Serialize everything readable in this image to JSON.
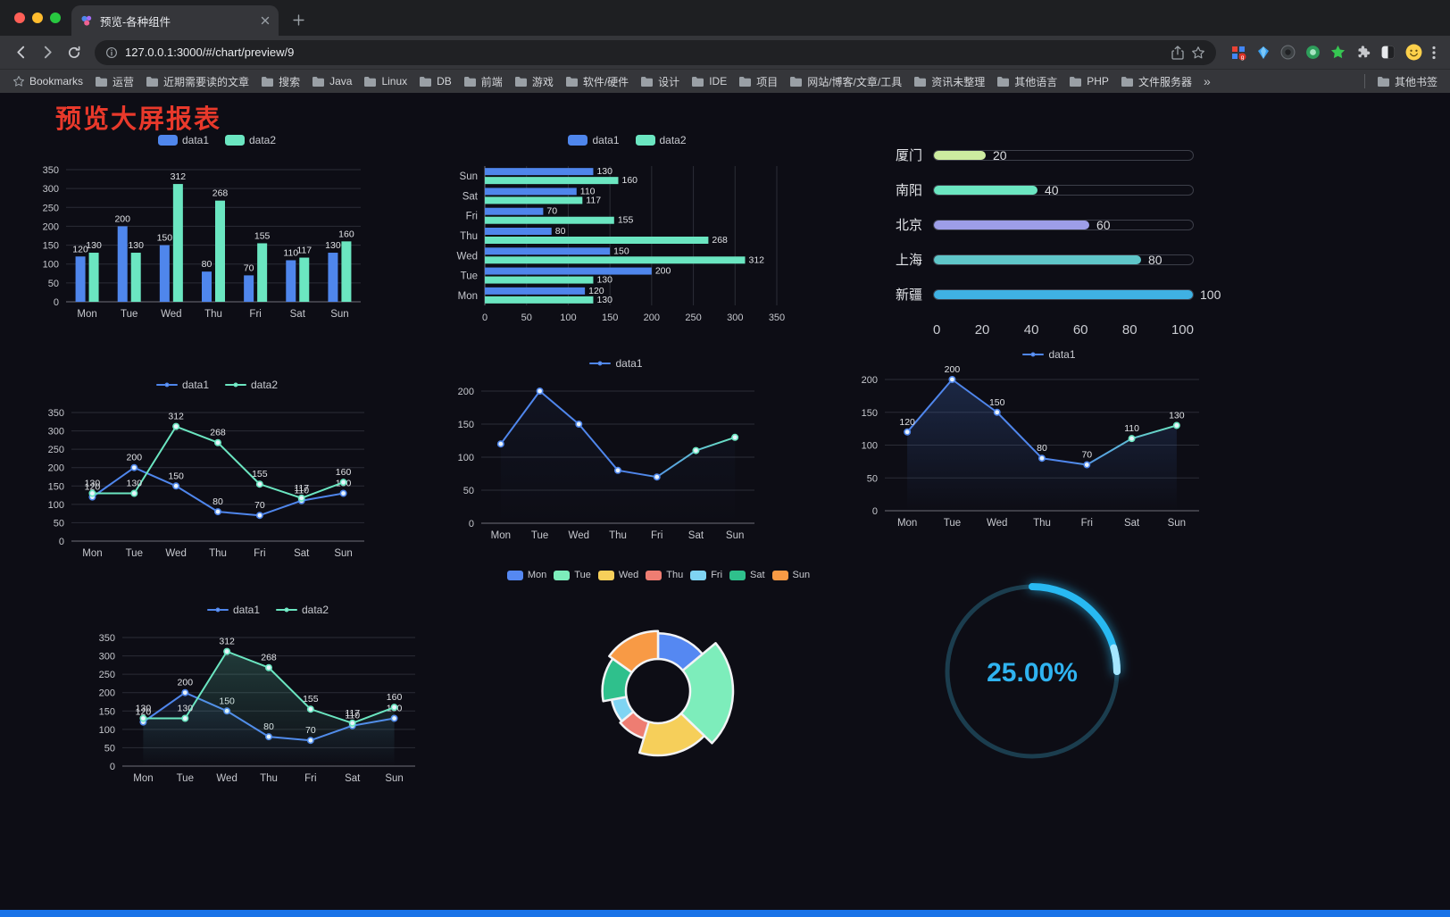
{
  "browser": {
    "traffic_lights": [
      "#ff5f57",
      "#febc2e",
      "#28c840"
    ],
    "tab": {
      "title": "预览-各种组件"
    },
    "url": "127.0.0.1:3000/#/chart/preview/9",
    "bookmarks_label": "Bookmarks",
    "bookmarks": [
      "运营",
      "近期需要读的文章",
      "搜索",
      "Java",
      "Linux",
      "DB",
      "前端",
      "游戏",
      "软件/硬件",
      "设计",
      "IDE",
      "项目",
      "网站/博客/文章/工具",
      "资讯未整理",
      "其他语言",
      "PHP",
      "文件服务器"
    ],
    "bookmarks_overflow": "»",
    "other_bookmarks": "其他书签"
  },
  "page": {
    "title": "预览大屏报表"
  },
  "chart_data": [
    {
      "id": "grouped-bar",
      "type": "bar",
      "categories": [
        "Mon",
        "Tue",
        "Wed",
        "Thu",
        "Fri",
        "Sat",
        "Sun"
      ],
      "series": [
        {
          "name": "data1",
          "color": "#4f86ec",
          "values": [
            120,
            200,
            150,
            80,
            70,
            110,
            130
          ]
        },
        {
          "name": "data2",
          "color": "#6be6c1",
          "values": [
            130,
            130,
            312,
            268,
            155,
            117,
            160
          ]
        }
      ],
      "ylim": [
        0,
        350
      ],
      "ystep": 50
    },
    {
      "id": "horizontal-grouped-bar",
      "type": "bar",
      "orientation": "horizontal",
      "categories": [
        "Mon",
        "Tue",
        "Wed",
        "Thu",
        "Fri",
        "Sat",
        "Sun"
      ],
      "series": [
        {
          "name": "data1",
          "color": "#4f86ec",
          "values": [
            120,
            200,
            150,
            80,
            70,
            110,
            130
          ]
        },
        {
          "name": "data2",
          "color": "#6be6c1",
          "values": [
            130,
            130,
            312,
            268,
            155,
            117,
            160
          ]
        }
      ],
      "xlim": [
        0,
        350
      ],
      "xstep": 50
    },
    {
      "id": "city-progress",
      "type": "bar",
      "orientation": "horizontal",
      "rows": [
        {
          "label": "厦门",
          "value": 20,
          "color": "#cdeca0"
        },
        {
          "label": "南阳",
          "value": 40,
          "color": "#6be6c1"
        },
        {
          "label": "北京",
          "value": 60,
          "color": "#9d9ee8"
        },
        {
          "label": "上海",
          "value": 80,
          "color": "#5fc6c9"
        },
        {
          "label": "新疆",
          "value": 100,
          "color": "#3fb1e3"
        }
      ],
      "xlim": [
        0,
        100
      ],
      "xticks": [
        0,
        20,
        40,
        60,
        80,
        100
      ]
    },
    {
      "id": "line-two-series",
      "type": "line",
      "categories": [
        "Mon",
        "Tue",
        "Wed",
        "Thu",
        "Fri",
        "Sat",
        "Sun"
      ],
      "series": [
        {
          "name": "data1",
          "color": "#4f86ec",
          "values": [
            120,
            200,
            150,
            80,
            70,
            110,
            130
          ],
          "labels": true
        },
        {
          "name": "data2",
          "color": "#6be6c1",
          "values": [
            130,
            130,
            312,
            268,
            155,
            117,
            160
          ],
          "labels": true
        }
      ],
      "ylim": [
        0,
        350
      ],
      "ystep": 50
    },
    {
      "id": "line-single",
      "type": "line",
      "categories": [
        "Mon",
        "Tue",
        "Wed",
        "Thu",
        "Fri",
        "Sat",
        "Sun"
      ],
      "series": [
        {
          "name": "data1",
          "color": "#4f86ec",
          "gradient": [
            "#4f86ec",
            "#6be6c1"
          ],
          "values": [
            120,
            200,
            150,
            80,
            70,
            110,
            130
          ],
          "labels": false,
          "area": 0.1
        }
      ],
      "ylim": [
        0,
        200
      ],
      "ystep": 50
    },
    {
      "id": "line-single-area",
      "type": "line",
      "categories": [
        "Mon",
        "Tue",
        "Wed",
        "Thu",
        "Fri",
        "Sat",
        "Sun"
      ],
      "series": [
        {
          "name": "data1",
          "color": "#4f86ec",
          "gradient": [
            "#4f86ec",
            "#6be6c1"
          ],
          "values": [
            120,
            200,
            150,
            80,
            70,
            110,
            130
          ],
          "labels": true,
          "area": 0.4
        }
      ],
      "ylim": [
        0,
        200
      ],
      "ystep": 50
    },
    {
      "id": "line-two-series-area",
      "type": "line",
      "categories": [
        "Mon",
        "Tue",
        "Wed",
        "Thu",
        "Fri",
        "Sat",
        "Sun"
      ],
      "series": [
        {
          "name": "data1",
          "color": "#4f86ec",
          "values": [
            120,
            200,
            150,
            80,
            70,
            110,
            130
          ],
          "labels": true,
          "area": 0.18
        },
        {
          "name": "data2",
          "color": "#6be6c1",
          "values": [
            130,
            130,
            312,
            268,
            155,
            117,
            160
          ],
          "labels": true,
          "area": 0.38
        }
      ],
      "ylim": [
        0,
        350
      ],
      "ystep": 50
    },
    {
      "id": "rose-donut",
      "type": "pie",
      "categories": [
        "Mon",
        "Tue",
        "Wed",
        "Thu",
        "Fri",
        "Sat",
        "Sun"
      ],
      "values": [
        120,
        200,
        150,
        80,
        70,
        110,
        130
      ],
      "colors": [
        "#5588f2",
        "#7dedbb",
        "#f6cf5a",
        "#ee7d72",
        "#7fd4f2",
        "#2fc08c",
        "#f89a45"
      ]
    },
    {
      "id": "gauge",
      "type": "gauge",
      "value": 25,
      "label": "25.00%",
      "color": "#28b9f2",
      "tip_color": "#a5e6ff",
      "ring_color": "#1d4254",
      "text_color": "#2fb3f0"
    }
  ]
}
